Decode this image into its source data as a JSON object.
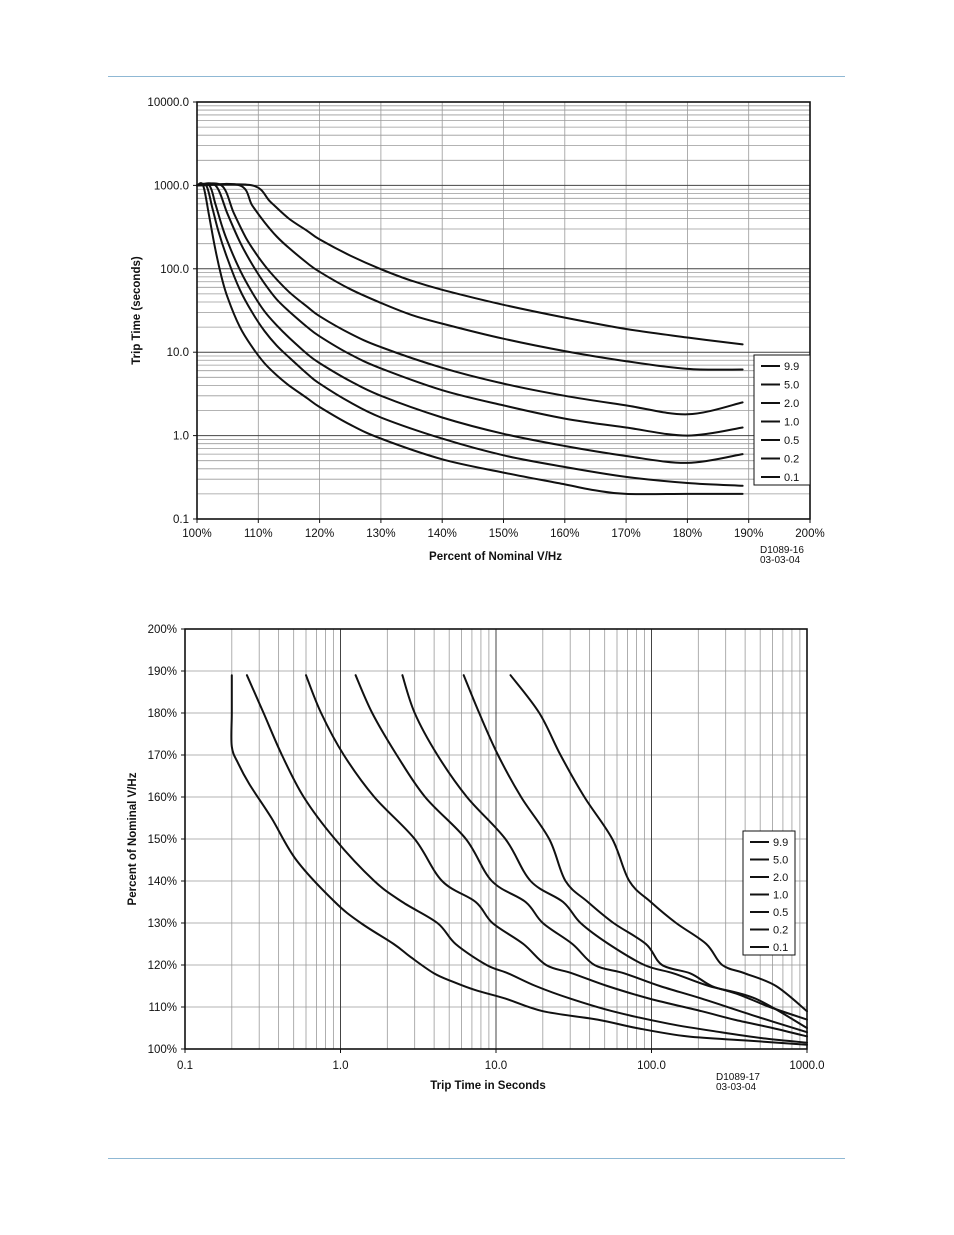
{
  "page": {
    "header_rule_color": "#8fb8d4",
    "footer_rule_color": "#8fb8d4"
  },
  "chart_data": [
    {
      "type": "line",
      "title": "",
      "xlabel": "Percent of Nominal V/Hz",
      "ylabel": "Trip Time (seconds)",
      "x_scale": "linear",
      "y_scale": "log",
      "xlim": [
        100,
        200
      ],
      "ylim": [
        0.1,
        10000
      ],
      "x_ticks": [
        "100%",
        "110%",
        "120%",
        "130%",
        "140%",
        "150%",
        "160%",
        "170%",
        "180%",
        "190%",
        "200%"
      ],
      "y_ticks": [
        "0.1",
        "1.0",
        "10.0",
        "100.0",
        "1000.0",
        "10000.0"
      ],
      "grid": true,
      "legend_position": "right",
      "drawing_code": "D1089-16",
      "drawing_date": "03-03-04",
      "series": [
        {
          "name": "9.9",
          "x": [
            100,
            109,
            112,
            115,
            118,
            120,
            125,
            130,
            135,
            140,
            150,
            160,
            170,
            180,
            189
          ],
          "y": [
            1000,
            1000,
            632,
            400,
            285,
            225,
            144,
            99,
            72,
            56,
            37,
            26,
            19,
            15,
            12.4
          ]
        },
        {
          "name": "5.0",
          "x": [
            100,
            107,
            109,
            111,
            113,
            115,
            118,
            120,
            125,
            130,
            135,
            140,
            150,
            160,
            170,
            180,
            189
          ],
          "y": [
            1000,
            1000,
            576,
            363,
            244,
            178,
            117,
            92,
            57,
            39,
            28,
            22,
            14.5,
            10.3,
            7.8,
            6.3,
            6.2
          ]
        },
        {
          "name": "2.0",
          "x": [
            100,
            104,
            106,
            108,
            110,
            112,
            115,
            118,
            120,
            125,
            130,
            140,
            150,
            160,
            170,
            180,
            189
          ],
          "y": [
            1000,
            1000,
            465,
            234,
            139,
            90,
            53,
            35,
            27,
            16.7,
            11.5,
            6.5,
            4.2,
            3.0,
            2.3,
            1.8,
            2.5
          ]
        },
        {
          "name": "1.0",
          "x": [
            100,
            103,
            105,
            107,
            109,
            111,
            113,
            115,
            118,
            120,
            125,
            130,
            140,
            150,
            160,
            170,
            180,
            189
          ],
          "y": [
            1000,
            1000,
            450,
            210,
            113,
            67,
            43,
            31,
            20,
            15.5,
            9.4,
            6.4,
            3.5,
            2.3,
            1.6,
            1.25,
            1.0,
            1.25
          ]
        },
        {
          "name": "0.5",
          "x": [
            100,
            102,
            103,
            104,
            105,
            107,
            109,
            111,
            113,
            115,
            118,
            120,
            125,
            130,
            140,
            150,
            160,
            170,
            180,
            189
          ],
          "y": [
            1000,
            1000,
            600,
            340,
            210,
            97,
            52,
            31,
            21,
            15,
            9.5,
            7.4,
            4.5,
            3.0,
            1.65,
            1.05,
            0.75,
            0.57,
            0.47,
            0.6
          ]
        },
        {
          "name": "0.2",
          "x": [
            100,
            101.5,
            102.5,
            103.5,
            105,
            107,
            109,
            111,
            113,
            115,
            118,
            120,
            125,
            130,
            140,
            150,
            160,
            170,
            180,
            189
          ],
          "y": [
            1000,
            1000,
            540,
            280,
            130,
            56,
            30,
            18,
            12,
            8.7,
            5.5,
            4.2,
            2.5,
            1.65,
            0.92,
            0.58,
            0.42,
            0.32,
            0.27,
            0.25
          ]
        },
        {
          "name": "0.1",
          "x": [
            100,
            101,
            102,
            103,
            104,
            105,
            107,
            109,
            111,
            113,
            115,
            118,
            120,
            125,
            130,
            140,
            150,
            160,
            165,
            170,
            180,
            189
          ],
          "y": [
            1000,
            1000,
            420,
            170,
            80,
            45,
            20,
            11.5,
            7.4,
            5.3,
            4.0,
            2.8,
            2.2,
            1.35,
            0.92,
            0.52,
            0.36,
            0.26,
            0.22,
            0.2,
            0.2,
            0.2
          ]
        }
      ]
    },
    {
      "type": "line",
      "title": "",
      "xlabel": "Trip Time in Seconds",
      "ylabel": "Percent of Nominal V/Hz",
      "x_scale": "log",
      "y_scale": "linear",
      "xlim": [
        0.1,
        1000
      ],
      "ylim": [
        100,
        200
      ],
      "x_ticks": [
        "0.1",
        "1.0",
        "10.0",
        "100.0",
        "1000.0"
      ],
      "y_ticks": [
        "100%",
        "110%",
        "120%",
        "130%",
        "140%",
        "150%",
        "160%",
        "170%",
        "180%",
        "190%",
        "200%"
      ],
      "grid": true,
      "legend_position": "right",
      "drawing_code": "D1089-17",
      "drawing_date": "03-03-04",
      "series": [
        {
          "name": "9.9",
          "x": [
            12.4,
            19,
            26,
            37,
            56,
            72,
            99,
            144,
            225,
            285,
            400,
            632,
            1000
          ],
          "y": [
            189,
            180,
            170,
            160,
            150,
            140,
            135,
            130,
            125,
            120,
            118,
            115,
            109
          ]
        },
        {
          "name": "5.0",
          "x": [
            6.2,
            7.8,
            10.3,
            14.5,
            22,
            28,
            39,
            57,
            92,
            117,
            178,
            244,
            363,
            576,
            1000
          ],
          "y": [
            189,
            180,
            170,
            160,
            150,
            140,
            135,
            130,
            125,
            120,
            118,
            115,
            113,
            110,
            107
          ]
        },
        {
          "name": "2.0",
          "x": [
            2.5,
            3.0,
            4.2,
            6.5,
            11.5,
            16.7,
            27,
            35,
            53,
            90,
            139,
            234,
            465,
            1000
          ],
          "y": [
            189,
            180,
            170,
            160,
            150,
            140,
            135,
            130,
            125,
            120,
            118,
            115,
            112,
            105
          ]
        },
        {
          "name": "1.0",
          "x": [
            1.25,
            1.6,
            2.3,
            3.5,
            6.4,
            9.4,
            15.5,
            20,
            31,
            43,
            67,
            113,
            210,
            450,
            1000
          ],
          "y": [
            189,
            180,
            170,
            160,
            150,
            140,
            135,
            130,
            125,
            120,
            118,
            115,
            112,
            108,
            104
          ]
        },
        {
          "name": "0.5",
          "x": [
            0.6,
            0.75,
            1.05,
            1.65,
            3.0,
            4.5,
            7.4,
            9.5,
            15,
            21,
            31,
            52,
            97,
            210,
            340,
            600,
            1000
          ],
          "y": [
            189,
            180,
            170,
            160,
            150,
            140,
            135,
            130,
            125,
            120,
            118,
            115,
            112,
            109,
            107,
            105,
            103
          ]
        },
        {
          "name": "0.2",
          "x": [
            0.25,
            0.32,
            0.42,
            0.58,
            0.92,
            1.65,
            2.5,
            4.2,
            5.5,
            8.7,
            12,
            18,
            30,
            56,
            130,
            280,
            540,
            1000
          ],
          "y": [
            189,
            180,
            170,
            160,
            150,
            140,
            135,
            130,
            125,
            120,
            118,
            115,
            112,
            109,
            106,
            104,
            102.5,
            101.5
          ]
        },
        {
          "name": "0.1",
          "x": [
            0.2,
            0.2,
            0.2,
            0.22,
            0.26,
            0.36,
            0.52,
            0.92,
            1.35,
            2.2,
            2.8,
            4.0,
            5.3,
            7.4,
            11.5,
            20,
            45,
            80,
            170,
            420,
            1000
          ],
          "y": [
            189,
            180,
            172,
            168,
            163,
            155,
            145,
            135,
            130,
            125,
            122,
            118,
            116,
            114,
            112,
            109,
            107,
            105,
            103,
            102,
            101
          ]
        }
      ]
    }
  ]
}
